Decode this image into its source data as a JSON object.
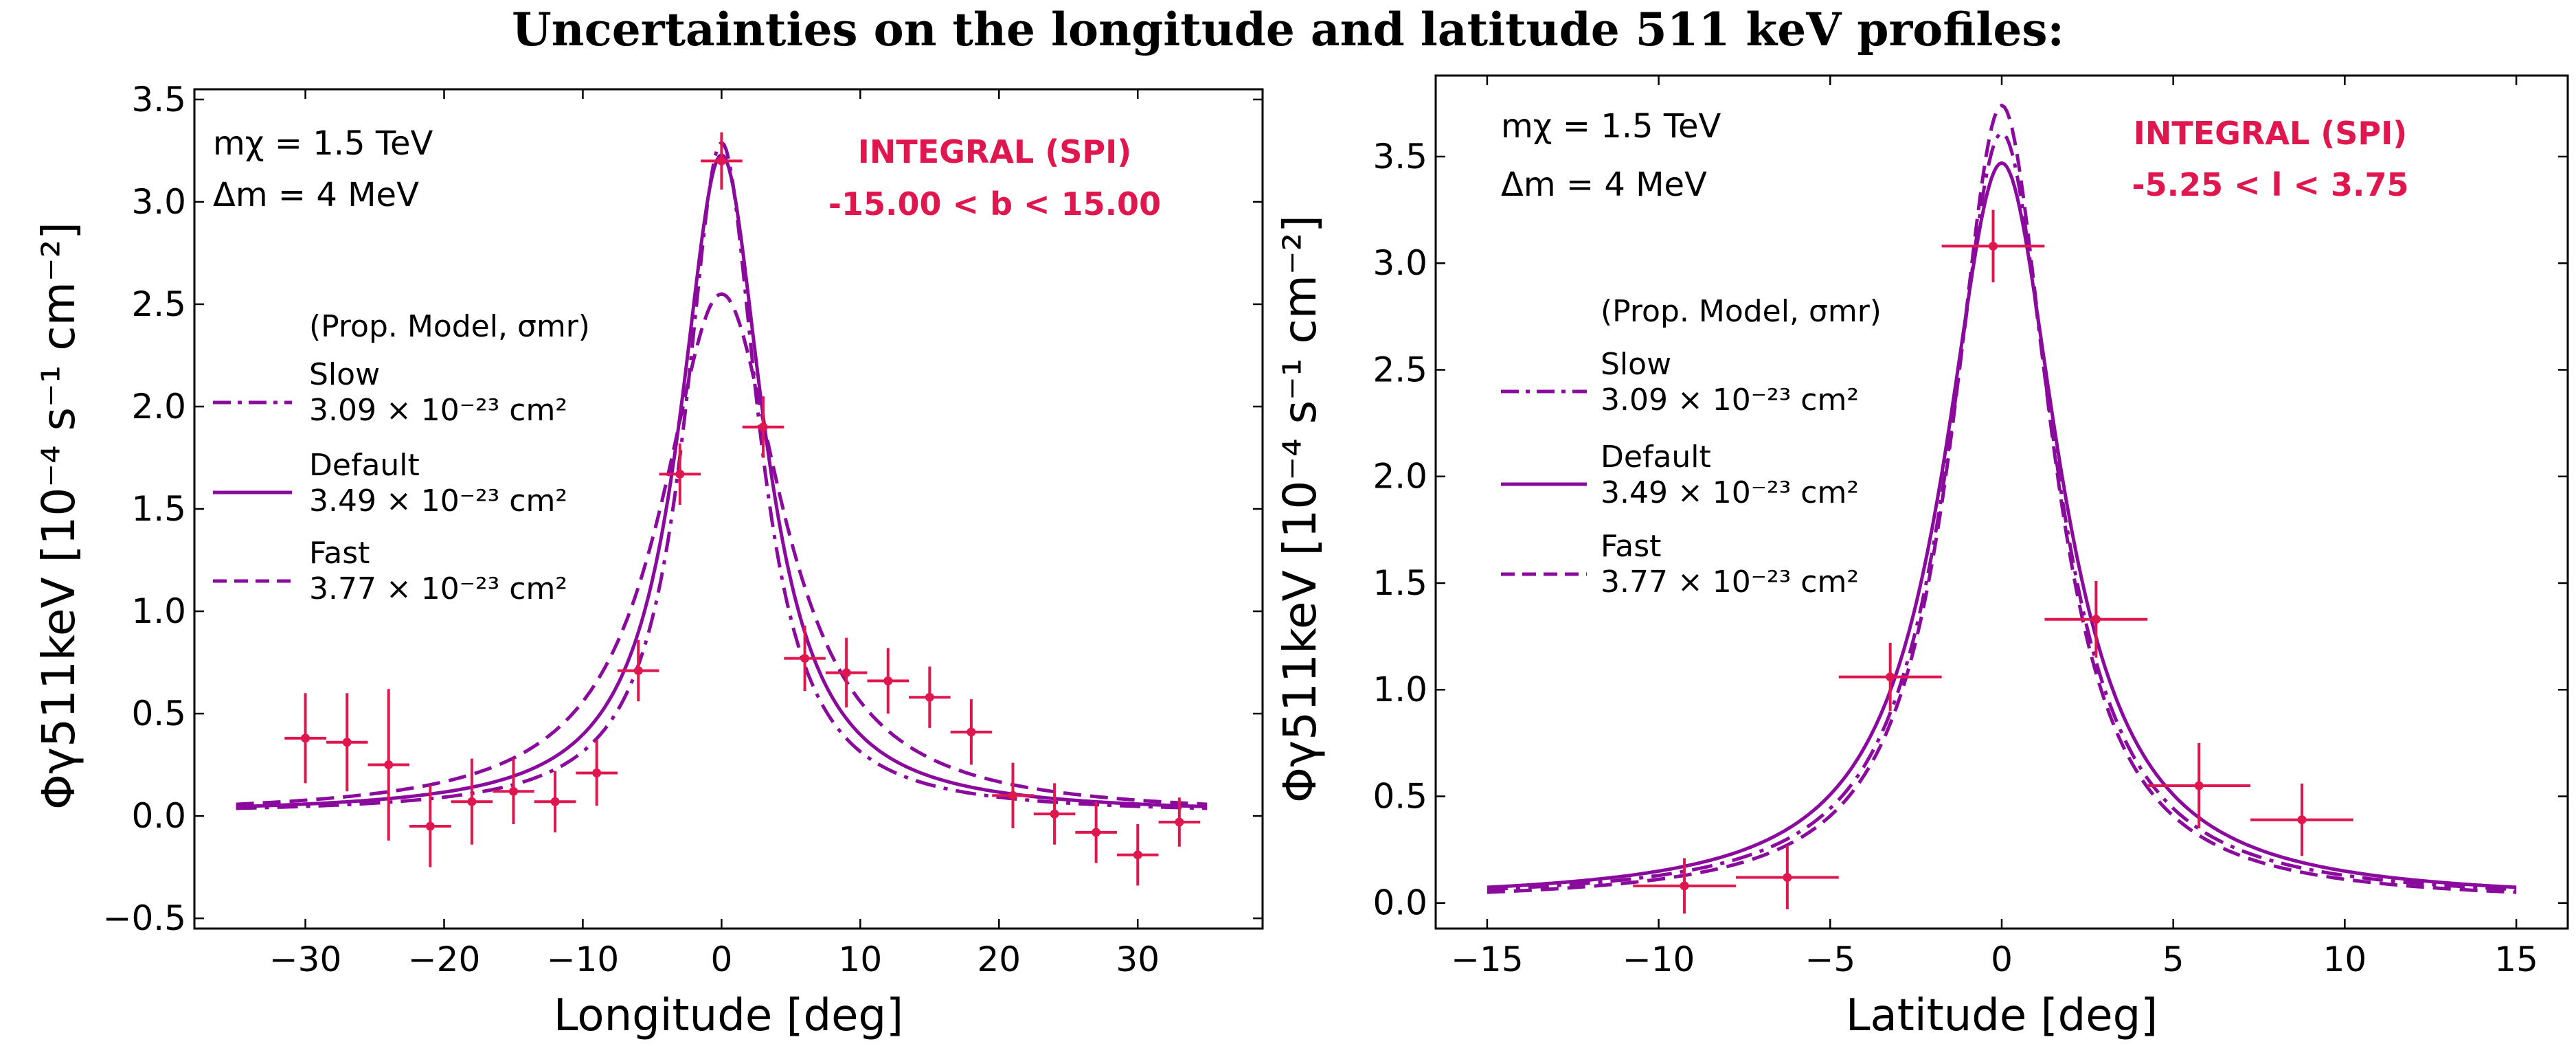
{
  "title": "Uncertainties on the longitude and latitude 511 keV profiles:",
  "colors": {
    "model": "#8b0a9e",
    "data": "#e0174e"
  },
  "chart_data": [
    {
      "type": "line",
      "xlabel": "Longitude [deg]",
      "ylabel": "Φγ511keV [10⁻⁴ s⁻¹ cm⁻²]",
      "xlim": [
        -38,
        39
      ],
      "ylim": [
        -0.55,
        3.55
      ],
      "xticks": [
        -30,
        -20,
        -10,
        0,
        10,
        20,
        30
      ],
      "yticks": [
        -0.5,
        0.0,
        0.5,
        1.0,
        1.5,
        2.0,
        2.5,
        3.0,
        3.5
      ],
      "annotation": {
        "mass": "mχ = 1.5 TeV",
        "split": "Δm = 4 MeV"
      },
      "instrument": {
        "name": "INTEGRAL (SPI)",
        "range": "-15.00 < b < 15.00"
      },
      "legend": {
        "title": "(Prop. Model, σmr)",
        "entries": [
          {
            "name": "Slow",
            "value": "3.09 × 10⁻²³ cm²",
            "style": "dashdot"
          },
          {
            "name": "Default",
            "value": "3.49 × 10⁻²³ cm²",
            "style": "solid"
          },
          {
            "name": "Fast",
            "value": "3.77 × 10⁻²³ cm²",
            "style": "dashed"
          }
        ]
      },
      "series": [
        {
          "name": "Slow",
          "style": "dashdot",
          "peak": 3.28,
          "width": 3.2,
          "base": 0.01
        },
        {
          "name": "Default",
          "style": "solid",
          "peak": 3.22,
          "width": 3.7,
          "base": 0.01
        },
        {
          "name": "Fast",
          "style": "dashed",
          "peak": 2.55,
          "width": 5.3,
          "base": 0.0
        }
      ],
      "data_points": {
        "x": [
          -30,
          -27,
          -24,
          -21,
          -18,
          -15,
          -12,
          -9,
          -6,
          -3,
          0,
          3,
          6,
          9,
          12,
          15,
          18,
          21,
          24,
          27,
          30,
          33
        ],
        "y": [
          0.38,
          0.36,
          0.25,
          -0.05,
          0.07,
          0.12,
          0.07,
          0.21,
          0.71,
          1.67,
          3.2,
          1.9,
          0.77,
          0.7,
          0.66,
          0.58,
          0.41,
          0.1,
          0.01,
          -0.08,
          -0.19,
          -0.03
        ],
        "xerr": [
          1.5,
          1.5,
          1.5,
          1.5,
          1.5,
          1.5,
          1.5,
          1.5,
          1.5,
          1.5,
          1.5,
          1.5,
          1.5,
          1.5,
          1.5,
          1.5,
          1.5,
          1.5,
          1.5,
          1.5,
          1.5,
          1.5
        ],
        "yerr": [
          0.22,
          0.24,
          0.37,
          0.2,
          0.21,
          0.16,
          0.15,
          0.16,
          0.15,
          0.15,
          0.14,
          0.15,
          0.16,
          0.17,
          0.16,
          0.15,
          0.16,
          0.16,
          0.15,
          0.15,
          0.15,
          0.12
        ]
      }
    },
    {
      "type": "line",
      "xlabel": "Latitude [deg]",
      "ylabel": "Φγ511keV [10⁻⁴ s⁻¹ cm⁻²]",
      "xlim": [
        -16.5,
        16.5
      ],
      "ylim": [
        -0.12,
        3.88
      ],
      "xticks": [
        -15,
        -10,
        -5,
        0,
        5,
        10,
        15
      ],
      "yticks": [
        0.0,
        0.5,
        1.0,
        1.5,
        2.0,
        2.5,
        3.0,
        3.5
      ],
      "annotation": {
        "mass": "mχ = 1.5 TeV",
        "split": "Δm = 4 MeV"
      },
      "instrument": {
        "name": "INTEGRAL (SPI)",
        "range": "-5.25 < l < 3.75"
      },
      "legend": {
        "title": "(Prop. Model, σmr)",
        "entries": [
          {
            "name": "Slow",
            "value": "3.09 × 10⁻²³ cm²",
            "style": "dashdot"
          },
          {
            "name": "Default",
            "value": "3.49 × 10⁻²³ cm²",
            "style": "solid"
          },
          {
            "name": "Fast",
            "value": "3.77 × 10⁻²³ cm²",
            "style": "dashed"
          }
        ]
      },
      "series": [
        {
          "name": "Slow",
          "style": "dashdot",
          "peak": 3.6,
          "width": 1.85,
          "base": 0.01
        },
        {
          "name": "Default",
          "style": "solid",
          "peak": 3.46,
          "width": 2.05,
          "base": 0.01
        },
        {
          "name": "Fast",
          "style": "dashed",
          "peak": 3.74,
          "width": 1.75,
          "base": 0.0
        }
      ],
      "data_points": {
        "x": [
          -9.25,
          -6.25,
          -3.25,
          -0.25,
          2.75,
          5.75,
          8.75
        ],
        "y": [
          0.08,
          0.12,
          1.06,
          3.08,
          1.33,
          0.55,
          0.39
        ],
        "xerr": [
          1.5,
          1.5,
          1.5,
          1.5,
          1.5,
          1.5,
          1.5
        ],
        "yerr": [
          0.13,
          0.15,
          0.16,
          0.17,
          0.18,
          0.2,
          0.17
        ]
      }
    }
  ]
}
